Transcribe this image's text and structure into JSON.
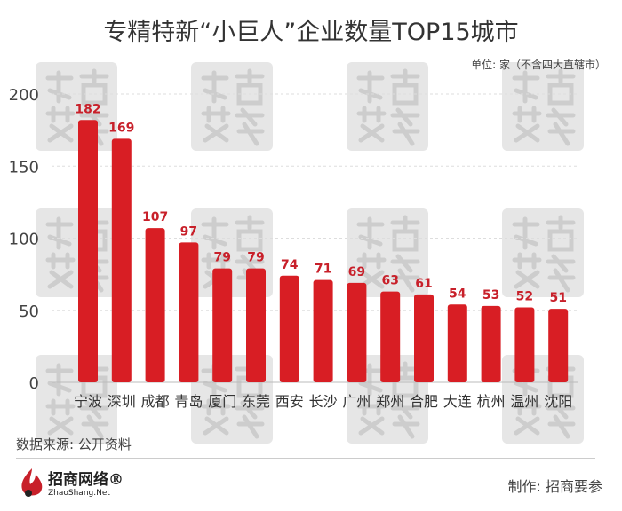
{
  "title": "专精特新“小巨人”企业数量TOP15城市",
  "unit_note": "单位: 家（不含四大直辖市）",
  "source": "数据来源: 公开资料",
  "credit": "制作: 招商要参",
  "logo": {
    "name": "招商网络®",
    "sub": "ZhaoShang.Net"
  },
  "watermark": "招商要参",
  "colors": {
    "bar": "#d81e24",
    "label": "#c8202a"
  },
  "chart_data": {
    "type": "bar",
    "title": "专精特新“小巨人”企业数量TOP15城市",
    "xlabel": "",
    "ylabel": "",
    "ylim": [
      0,
      200
    ],
    "yticks": [
      "0",
      "50",
      "100",
      "150",
      "200"
    ],
    "grid": true,
    "categories": [
      "宁波",
      "深圳",
      "成都",
      "青岛",
      "厦门",
      "东莞",
      "西安",
      "长沙",
      "广州",
      "郑州",
      "合肥",
      "大连",
      "杭州",
      "温州",
      "沈阳"
    ],
    "values": [
      182,
      169,
      107,
      97,
      79,
      79,
      74,
      71,
      69,
      63,
      61,
      54,
      53,
      52,
      51
    ],
    "value_labels": [
      "182",
      "169",
      "107",
      "97",
      "79",
      "79",
      "74",
      "71",
      "69",
      "63",
      "61",
      "54",
      "53",
      "52",
      "51"
    ]
  }
}
